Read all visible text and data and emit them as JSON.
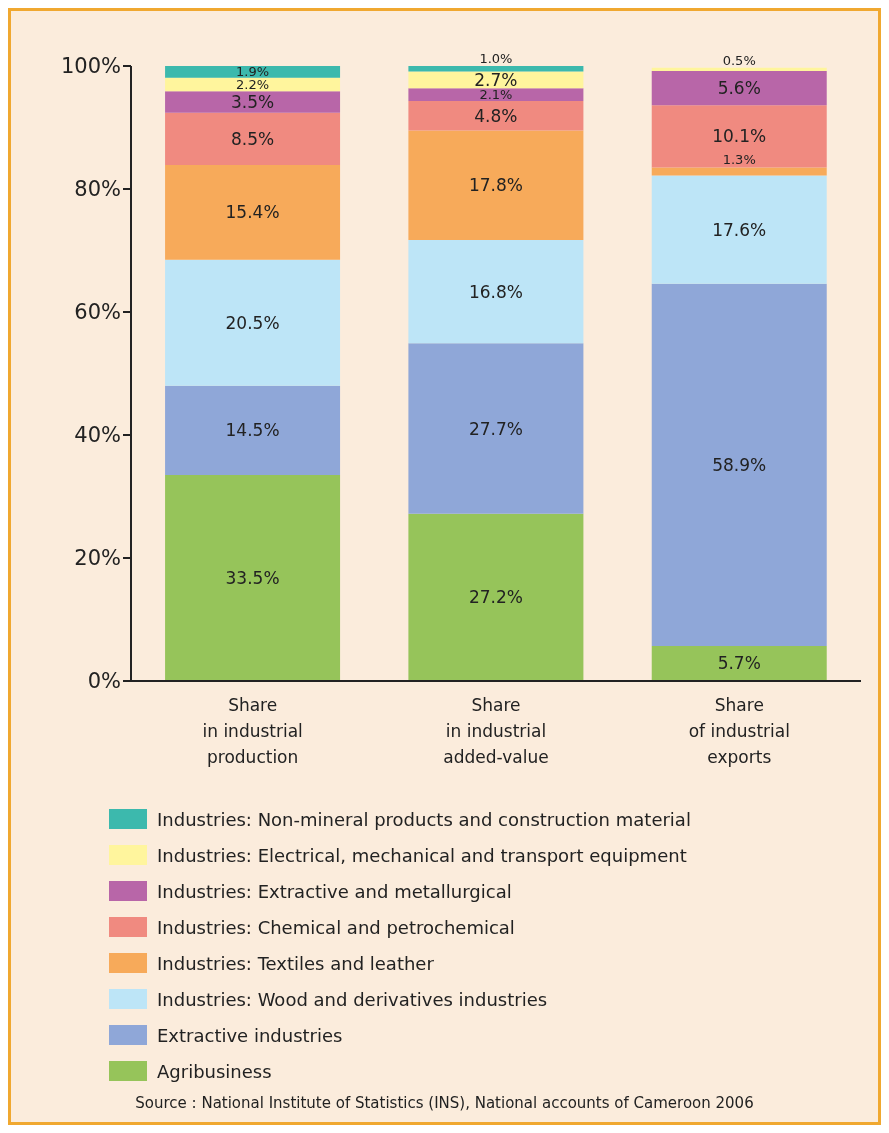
{
  "chart_data": {
    "type": "bar",
    "stacked": true,
    "categories": [
      "Share\nin industrial\nproduction",
      "Share\nin industrial\nadded-value",
      "Share\nof industrial\nexports"
    ],
    "series": [
      {
        "name": "Agribusiness",
        "color": "#96c45a",
        "values": [
          33.5,
          27.2,
          5.7
        ],
        "value_labels": [
          "33.5%",
          "27.2%",
          "5.7%"
        ]
      },
      {
        "name": "Extractive industries",
        "color": "#8fa7d8",
        "values": [
          14.5,
          27.7,
          58.9
        ],
        "value_labels": [
          "14.5%",
          "27.7%",
          "58.9%"
        ]
      },
      {
        "name": "Industries: Wood and derivatives industries",
        "color": "#bde5f7",
        "values": [
          20.5,
          16.8,
          17.6
        ],
        "value_labels": [
          "20.5%",
          "16.8%",
          "17.6%"
        ]
      },
      {
        "name": "Industries: Textiles and leather",
        "color": "#f7aa5a",
        "values": [
          15.4,
          17.8,
          1.3
        ],
        "value_labels": [
          "15.4%",
          "17.8%",
          "1.3%"
        ]
      },
      {
        "name": "Industries: Chemical and petrochemical",
        "color": "#f08a80",
        "values": [
          8.5,
          4.8,
          10.1
        ],
        "value_labels": [
          "8.5%",
          "4.8%",
          "10.1%"
        ]
      },
      {
        "name": "Industries: Extractive and metallurgical",
        "color": "#b866a8",
        "values": [
          3.5,
          2.1,
          5.6
        ],
        "value_labels": [
          "3.5%",
          "2.1%",
          "5.6%"
        ]
      },
      {
        "name": "Industries: Electrical, mechanical and transport equipment",
        "color": "#fff59d",
        "values": [
          2.2,
          2.7,
          0.5
        ],
        "value_labels": [
          "2.2%",
          "2.7%",
          "0.5%"
        ]
      },
      {
        "name": "Industries: Non-mineral products and construction material",
        "color": "#3cb9ad",
        "values": [
          1.9,
          1.0,
          null
        ],
        "value_labels": [
          "1.9%",
          "1.0%",
          null
        ]
      }
    ],
    "ylim": [
      0,
      100
    ],
    "yticks": [
      {
        "value": 0,
        "label": "0%"
      },
      {
        "value": 20,
        "label": "20%"
      },
      {
        "value": 40,
        "label": "40%"
      },
      {
        "value": 60,
        "label": "60%"
      },
      {
        "value": 80,
        "label": "80%"
      },
      {
        "value": 100,
        "label": "100%"
      }
    ],
    "legend": "bottom",
    "annotations": [
      "Source : National Institute of Statistics (INS), National accounts of Cameroon 2006"
    ]
  }
}
